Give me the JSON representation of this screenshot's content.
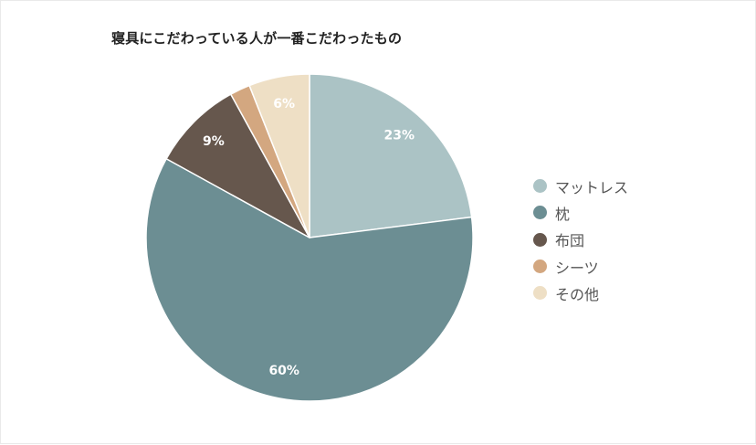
{
  "chart_data": {
    "type": "pie",
    "title": "寝具にこだわっている人が一番こだわったもの",
    "categories": [
      "マットレス",
      "枕",
      "布団",
      "シーツ",
      "その他"
    ],
    "values": [
      23,
      60,
      9,
      2,
      6
    ],
    "data_labels": [
      "23%",
      "60%",
      "9%",
      "",
      "6%"
    ],
    "colors": [
      "#abc3c5",
      "#6c8e93",
      "#66574d",
      "#d3a780",
      "#eedfc5"
    ],
    "start_angle": "12 o'clock",
    "direction": "clockwise",
    "legend_position": "right"
  }
}
